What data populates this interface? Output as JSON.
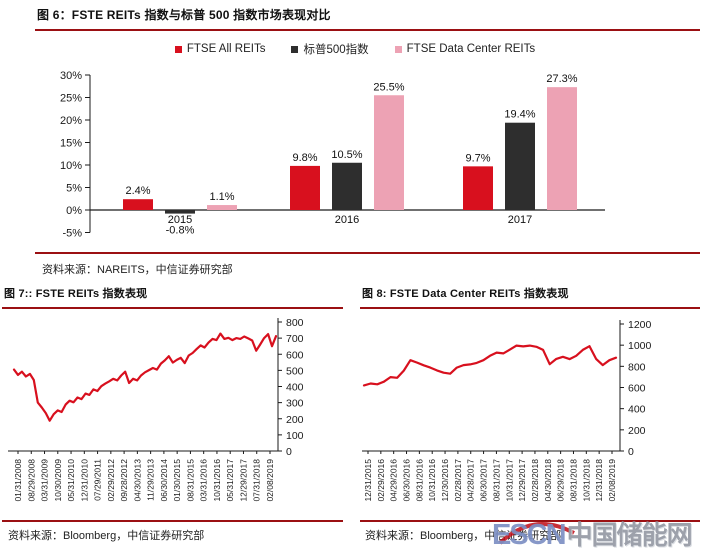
{
  "theme": {
    "red": "#d8101e",
    "dark": "#2e2e2e",
    "pink": "#eda2b4",
    "rule_red": "#9b1013",
    "axis_color": "#1a1a1a",
    "watermark_blue": "#7d90c4",
    "watermark_gray": "#989da7",
    "watermark_swoosh_red": "#c00b15"
  },
  "figure6": {
    "title": "图 6：FSTE  REITs 指数与标普 500 指数市场表现对比",
    "source": "资料来源：NAREITS，中信证券研究部"
  },
  "figure7": {
    "title": "图 7:: FSTE REITs 指数表现",
    "source": "资料来源：Bloomberg，中信证券研究部"
  },
  "figure8": {
    "title": "图 8: FSTE Data Center REITs 指数表现",
    "source": "资料来源：Bloomberg，中信证券研究部"
  },
  "watermark": {
    "latin": "ESCN",
    "cjk": "中国储能网"
  },
  "chart_data": [
    {
      "type": "bar",
      "title": "图 6：FSTE REITs 指数与标普 500 指数市场表现对比",
      "categories": [
        "2015",
        "2016",
        "2017"
      ],
      "series": [
        {
          "name": "FTSE All REITs",
          "color_key": "red",
          "values": [
            2.4,
            9.8,
            9.7
          ],
          "labels": [
            "2.4%",
            "9.8%",
            "9.7%"
          ]
        },
        {
          "name": "标普500指数",
          "color_key": "dark",
          "values": [
            -0.8,
            10.5,
            19.4
          ],
          "labels": [
            "-0.8%",
            "10.5%",
            "19.4%"
          ]
        },
        {
          "name": "FTSE Data Center REITs",
          "color_key": "pink",
          "values": [
            1.1,
            25.5,
            27.3
          ],
          "labels": [
            "1.1%",
            "25.5%",
            "27.3%"
          ]
        }
      ],
      "xlabel": "",
      "ylabel": "",
      "ylim": [
        -5,
        30
      ],
      "yticks": [
        30,
        25,
        20,
        15,
        10,
        5,
        0,
        -5
      ],
      "ytick_suffix": "%",
      "grid": false,
      "legend_position": "top"
    },
    {
      "type": "line",
      "title": "图 7:: FSTE REITs 指数表现",
      "x_tick_labels": [
        "01/31/2008",
        "08/29/2008",
        "03/31/2009",
        "10/30/2009",
        "05/31/2010",
        "12/31/2010",
        "07/29/2011",
        "02/29/2012",
        "09/28/2012",
        "04/30/2013",
        "11/29/2013",
        "06/30/2014",
        "01/30/2015",
        "08/31/2015",
        "03/31/2016",
        "10/31/2016",
        "05/31/2017",
        "12/29/2017",
        "07/31/2018",
        "02/08/2019"
      ],
      "values": [
        505,
        472,
        492,
        462,
        478,
        440,
        300,
        270,
        235,
        188,
        228,
        252,
        242,
        288,
        312,
        302,
        332,
        322,
        356,
        348,
        382,
        372,
        402,
        418,
        432,
        448,
        438,
        468,
        492,
        422,
        448,
        438,
        468,
        488,
        502,
        515,
        505,
        542,
        562,
        588,
        548,
        565,
        578,
        545,
        592,
        608,
        632,
        655,
        642,
        672,
        695,
        688,
        728,
        695,
        702,
        688,
        700,
        695,
        710,
        698,
        685,
        622,
        660,
        700,
        725,
        650,
        712
      ],
      "xlabel": "",
      "ylabel": "",
      "ylim": [
        0,
        800
      ],
      "yticks": [
        800,
        700,
        600,
        500,
        400,
        300,
        200,
        100,
        0
      ],
      "grid": false,
      "y_axis_side": "right",
      "line_color_key": "red"
    },
    {
      "type": "line",
      "title": "图 8: FSTE Data Center REITs 指数表现",
      "x_tick_labels": [
        "12/31/2015",
        "02/29/2016",
        "04/29/2016",
        "06/30/2016",
        "08/31/2016",
        "10/31/2016",
        "12/30/2016",
        "02/28/2017",
        "04/28/2017",
        "06/30/2017",
        "08/31/2017",
        "10/31/2017",
        "12/29/2017",
        "02/28/2018",
        "04/30/2018",
        "06/29/2018",
        "08/31/2018",
        "10/31/2018",
        "12/31/2018",
        "02/08/2019"
      ],
      "values": [
        620,
        638,
        630,
        655,
        698,
        692,
        760,
        858,
        835,
        810,
        788,
        762,
        740,
        730,
        788,
        812,
        818,
        832,
        858,
        900,
        930,
        922,
        958,
        996,
        988,
        996,
        985,
        955,
        820,
        870,
        890,
        868,
        900,
        955,
        990,
        870,
        812,
        858,
        882
      ],
      "xlabel": "",
      "ylabel": "",
      "ylim": [
        0,
        1200
      ],
      "yticks": [
        1200,
        1000,
        800,
        600,
        400,
        200,
        0
      ],
      "grid": false,
      "y_axis_side": "right",
      "line_color_key": "red"
    }
  ]
}
